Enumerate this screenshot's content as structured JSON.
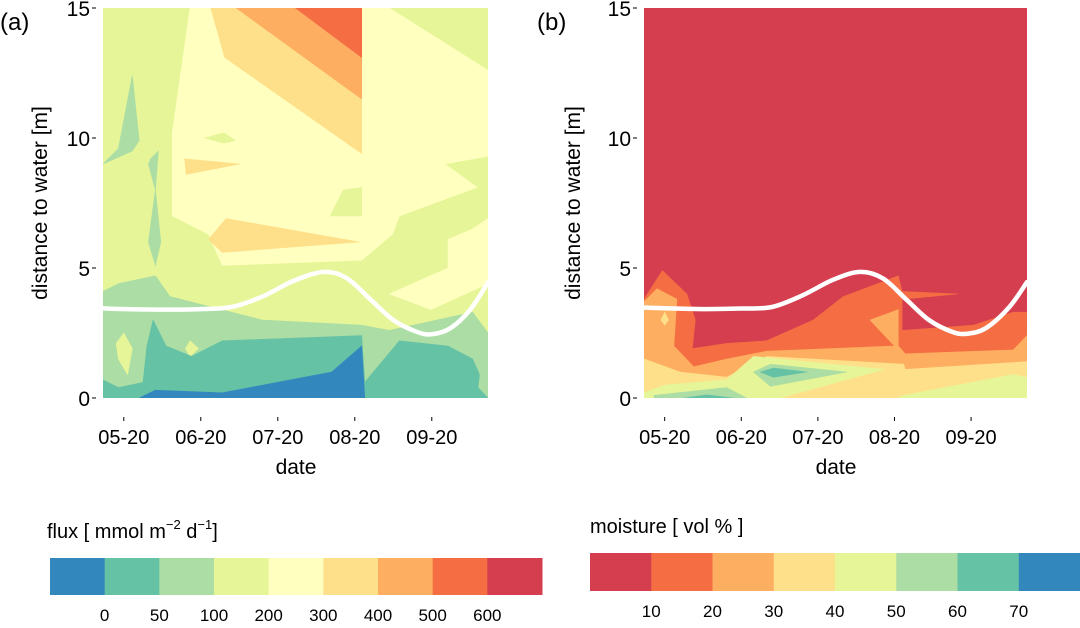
{
  "chart_data": [
    {
      "type": "heatmap",
      "subtype": "filled-contour",
      "panel_label": "(a)",
      "xlabel": "date",
      "ylabel": "distance to water [m]",
      "x_units": "months since 05-20",
      "xlim": [
        -0.27,
        4.73
      ],
      "ylim": [
        0,
        15
      ],
      "xticks": [
        0,
        1,
        2,
        3,
        4
      ],
      "xtick_labels": [
        "05-20",
        "06-20",
        "07-20",
        "08-20",
        "09-20"
      ],
      "yticks": [
        0,
        5,
        10,
        15
      ],
      "ytick_labels": [
        "0",
        "5",
        "10",
        "15"
      ],
      "legend": {
        "title_parts": [
          "flux [ mmol m",
          "−2",
          " d",
          "−1",
          "]"
        ],
        "colors": [
          "#3288bd",
          "#66c2a5",
          "#abdda4",
          "#e6f598",
          "#ffffbf",
          "#fee08b",
          "#fdae61",
          "#f46d43",
          "#d53e4f"
        ],
        "labels": [
          "0",
          "50",
          "100",
          "200",
          "300",
          "400",
          "500",
          "600"
        ]
      },
      "regions": [
        {
          "level": "100-200",
          "color": "#e6f598",
          "points": [
            [
              -0.27,
              0
            ],
            [
              4.73,
              0
            ],
            [
              4.73,
              15
            ],
            [
              -0.27,
              15
            ]
          ]
        },
        {
          "level": "200-300",
          "color": "#ffffbf",
          "points": [
            [
              0.86,
              15
            ],
            [
              3.45,
              15
            ],
            [
              4.73,
              12.6
            ],
            [
              4.73,
              9.3
            ],
            [
              4.17,
              9.0
            ],
            [
              4.59,
              8.1
            ],
            [
              3.58,
              7.0
            ],
            [
              3.49,
              6.3
            ],
            [
              3.13,
              5.4
            ],
            [
              3.09,
              5.3
            ],
            [
              1.28,
              5.1
            ],
            [
              1.1,
              6.3
            ],
            [
              0.63,
              7.0
            ],
            [
              0.63,
              10.2
            ]
          ]
        },
        {
          "level": "200-300",
          "color": "#ffffbf",
          "points": [
            [
              3.45,
              4.0
            ],
            [
              3.99,
              3.4
            ],
            [
              4.73,
              4.4
            ],
            [
              4.73,
              6.9
            ],
            [
              4.53,
              6.5
            ],
            [
              4.21,
              6.1
            ],
            [
              4.21,
              5.0
            ]
          ]
        },
        {
          "level": "100-200",
          "color": "#e6f598",
          "points": [
            [
              1.05,
              10.0
            ],
            [
              1.3,
              10.2
            ],
            [
              1.45,
              9.9
            ],
            [
              1.3,
              9.8
            ]
          ]
        },
        {
          "level": "100-200",
          "color": "#e6f598",
          "points": [
            [
              2.68,
              7.0
            ],
            [
              3.09,
              7.0
            ],
            [
              3.09,
              8.1
            ],
            [
              2.85,
              8.0
            ]
          ]
        },
        {
          "level": "300-400",
          "color": "#fee08b",
          "points": [
            [
              1.13,
              15
            ],
            [
              3.09,
              15
            ],
            [
              3.09,
              9.4
            ],
            [
              1.31,
              13.1
            ]
          ]
        },
        {
          "level": "300-400",
          "color": "#fee08b",
          "points": [
            [
              1.1,
              6.1
            ],
            [
              1.33,
              6.9
            ],
            [
              3.06,
              6.0
            ],
            [
              1.28,
              5.6
            ]
          ]
        },
        {
          "level": "300-400",
          "color": "#fee08b",
          "points": [
            [
              0.79,
              9.2
            ],
            [
              0.81,
              8.6
            ],
            [
              1.51,
              9.0
            ]
          ]
        },
        {
          "level": "400-500",
          "color": "#fdae61",
          "points": [
            [
              1.46,
              15
            ],
            [
              3.09,
              15
            ],
            [
              3.09,
              11.5
            ]
          ]
        },
        {
          "level": "500-600",
          "color": "#f46d43",
          "points": [
            [
              2.23,
              15
            ],
            [
              3.09,
              15
            ],
            [
              3.09,
              13.1
            ]
          ]
        },
        {
          "level": "50-100",
          "color": "#abdda4",
          "points": [
            [
              -0.27,
              0
            ],
            [
              4.73,
              0
            ],
            [
              4.73,
              2.5
            ],
            [
              4.53,
              3.3
            ],
            [
              3.45,
              2.6
            ],
            [
              3.09,
              2.8
            ],
            [
              1.8,
              3.0
            ],
            [
              0.6,
              3.9
            ],
            [
              0.41,
              4.7
            ],
            [
              -0.07,
              4.4
            ],
            [
              -0.27,
              4.1
            ]
          ]
        },
        {
          "level": "50-100",
          "color": "#abdda4",
          "points": [
            [
              -0.27,
              9.0
            ],
            [
              -0.07,
              9.6
            ],
            [
              0.11,
              12.4
            ],
            [
              0.2,
              9.9
            ],
            [
              0.11,
              9.5
            ]
          ]
        },
        {
          "level": "50-100",
          "color": "#abdda4",
          "points": [
            [
              0.35,
              9.2
            ],
            [
              0.45,
              9.5
            ],
            [
              0.41,
              8.0
            ],
            [
              0.32,
              6.0
            ],
            [
              0.41,
              5.1
            ],
            [
              0.48,
              6.0
            ],
            [
              0.41,
              8.0
            ],
            [
              0.32,
              9.0
            ]
          ]
        },
        {
          "level": "100-200",
          "color": "#e6f598",
          "points": [
            [
              0.0,
              2.5
            ],
            [
              0.11,
              1.9
            ],
            [
              0.05,
              0.9
            ],
            [
              -0.07,
              1.5
            ],
            [
              -0.1,
              2.1
            ]
          ]
        },
        {
          "level": "100-200",
          "color": "#e6f598",
          "points": [
            [
              0.8,
              1.9
            ],
            [
              0.86,
              2.2
            ],
            [
              0.97,
              1.9
            ],
            [
              0.86,
              1.6
            ]
          ]
        },
        {
          "level": "0-50",
          "color": "#66c2a5",
          "points": [
            [
              -0.27,
              0
            ],
            [
              4.73,
              0
            ],
            [
              4.6,
              0.4
            ],
            [
              4.62,
              0.9
            ],
            [
              4.53,
              1.5
            ],
            [
              4.21,
              2.0
            ],
            [
              3.58,
              2.2
            ],
            [
              3.13,
              0.6
            ],
            [
              3.09,
              2.4
            ],
            [
              1.28,
              2.2
            ],
            [
              0.88,
              1.6
            ],
            [
              0.55,
              2.0
            ],
            [
              0.38,
              3.0
            ],
            [
              0.3,
              2.0
            ],
            [
              0.25,
              0.6
            ],
            [
              -0.07,
              0.4
            ],
            [
              -0.27,
              0.7
            ]
          ]
        },
        {
          "level": "<0",
          "color": "#3288bd",
          "points": [
            [
              0.2,
              0
            ],
            [
              0.41,
              0.3
            ],
            [
              1.28,
              0.2
            ],
            [
              2.7,
              1.0
            ],
            [
              3.09,
              2.0
            ],
            [
              3.13,
              0
            ]
          ]
        }
      ],
      "water_line": [
        [
          -0.27,
          3.45
        ],
        [
          0,
          3.42
        ],
        [
          0.5,
          3.4
        ],
        [
          1,
          3.42
        ],
        [
          1.4,
          3.5
        ],
        [
          1.8,
          3.9
        ],
        [
          2.2,
          4.5
        ],
        [
          2.6,
          4.85
        ],
        [
          2.9,
          4.6
        ],
        [
          3.2,
          3.8
        ],
        [
          3.5,
          3.0
        ],
        [
          3.8,
          2.55
        ],
        [
          4.0,
          2.45
        ],
        [
          4.25,
          2.7
        ],
        [
          4.5,
          3.4
        ],
        [
          4.73,
          4.45
        ]
      ]
    },
    {
      "type": "heatmap",
      "subtype": "filled-contour",
      "panel_label": "(b)",
      "xlabel": "date",
      "ylabel": "distance to water [m]",
      "x_units": "months since 05-20",
      "xlim": [
        -0.27,
        4.73
      ],
      "ylim": [
        0,
        15
      ],
      "xticks": [
        0,
        1,
        2,
        3,
        4
      ],
      "xtick_labels": [
        "05-20",
        "06-20",
        "07-20",
        "08-20",
        "09-20"
      ],
      "yticks": [
        0,
        5,
        10,
        15
      ],
      "ytick_labels": [
        "0",
        "5",
        "10",
        "15"
      ],
      "legend": {
        "title": "moisture [ vol % ]",
        "colors": [
          "#d53e4f",
          "#f46d43",
          "#fdae61",
          "#fee08b",
          "#e6f598",
          "#abdda4",
          "#66c2a5",
          "#3288bd"
        ],
        "labels": [
          "10",
          "20",
          "30",
          "40",
          "50",
          "60",
          "70"
        ]
      },
      "regions": [
        {
          "level": "<10",
          "color": "#d53e4f",
          "points": [
            [
              -0.27,
              0
            ],
            [
              4.73,
              0
            ],
            [
              4.73,
              15
            ],
            [
              -0.27,
              15
            ]
          ]
        },
        {
          "level": "10-20",
          "color": "#f46d43",
          "points": [
            [
              -0.27,
              0
            ],
            [
              4.73,
              0
            ],
            [
              4.73,
              3.3
            ],
            [
              4.55,
              3.3
            ],
            [
              4.03,
              2.8
            ],
            [
              3.1,
              2.6
            ],
            [
              3.1,
              3.8
            ],
            [
              3.83,
              4.0
            ],
            [
              3.1,
              4.1
            ],
            [
              3.05,
              4.7
            ],
            [
              2.33,
              3.9
            ],
            [
              1.94,
              3.0
            ],
            [
              1.33,
              2.2
            ],
            [
              0.81,
              2.1
            ],
            [
              0.36,
              1.9
            ],
            [
              0.4,
              3.0
            ],
            [
              0.29,
              4.0
            ],
            [
              -0.03,
              4.9
            ],
            [
              -0.27,
              3.8
            ]
          ]
        },
        {
          "level": "20-30",
          "color": "#fdae61",
          "points": [
            [
              -0.27,
              0
            ],
            [
              4.73,
              0
            ],
            [
              4.73,
              2.4
            ],
            [
              4.55,
              1.85
            ],
            [
              3.14,
              1.7
            ],
            [
              3.05,
              2.0
            ],
            [
              3.05,
              3.4
            ],
            [
              2.68,
              3.0
            ],
            [
              3.0,
              2.0
            ],
            [
              1.33,
              1.8
            ],
            [
              0.81,
              1.5
            ],
            [
              0.38,
              1.2
            ],
            [
              0.12,
              2.0
            ],
            [
              0.16,
              3.8
            ],
            [
              -0.1,
              4.2
            ],
            [
              -0.27,
              3.7
            ]
          ]
        },
        {
          "level": "30-40",
          "color": "#fee08b",
          "points": [
            [
              -0.27,
              0
            ],
            [
              4.73,
              0
            ],
            [
              4.73,
              1.4
            ],
            [
              3.14,
              1.1
            ],
            [
              3.12,
              1.3
            ],
            [
              1.33,
              1.6
            ],
            [
              0.81,
              0.8
            ],
            [
              0.2,
              1.0
            ],
            [
              -0.27,
              1.5
            ]
          ]
        },
        {
          "level": "30-40",
          "color": "#fee08b",
          "points": [
            [
              -0.05,
              3.0
            ],
            [
              0.0,
              3.3
            ],
            [
              0.05,
              3.0
            ],
            [
              0.0,
              2.8
            ]
          ]
        },
        {
          "level": "40-50",
          "color": "#e6f598",
          "points": [
            [
              -0.27,
              0
            ],
            [
              1.5,
              0
            ],
            [
              2.86,
              1.1
            ],
            [
              1.16,
              1.6
            ],
            [
              0.81,
              0.7
            ],
            [
              0,
              0.5
            ],
            [
              -0.27,
              0.2
            ]
          ]
        },
        {
          "level": "40-50",
          "color": "#e6f598",
          "points": [
            [
              3.05,
              0
            ],
            [
              4.73,
              0
            ],
            [
              4.73,
              0.8
            ],
            [
              4.55,
              0.9
            ],
            [
              3.12,
              0.1
            ]
          ]
        },
        {
          "level": "50-60",
          "color": "#abdda4",
          "points": [
            [
              -0.14,
              0
            ],
            [
              1.07,
              0
            ],
            [
              0.81,
              0.4
            ],
            [
              -0.14,
              0.1
            ]
          ]
        },
        {
          "level": "50-60",
          "color": "#abdda4",
          "points": [
            [
              1.16,
              1.0
            ],
            [
              1.38,
              1.3
            ],
            [
              2.38,
              1.0
            ],
            [
              1.38,
              0.45
            ]
          ]
        },
        {
          "level": "60-70",
          "color": "#66c2a5",
          "points": [
            [
              0.25,
              0
            ],
            [
              0.9,
              0
            ],
            [
              0.55,
              0.12
            ]
          ]
        },
        {
          "level": "60-70",
          "color": "#66c2a5",
          "points": [
            [
              1.25,
              1.0
            ],
            [
              1.42,
              1.15
            ],
            [
              1.86,
              1.0
            ],
            [
              1.42,
              0.8
            ]
          ]
        }
      ],
      "water_line": [
        [
          -0.27,
          3.48
        ],
        [
          0,
          3.45
        ],
        [
          0.5,
          3.42
        ],
        [
          1,
          3.44
        ],
        [
          1.4,
          3.5
        ],
        [
          1.8,
          3.95
        ],
        [
          2.2,
          4.55
        ],
        [
          2.55,
          4.85
        ],
        [
          2.85,
          4.6
        ],
        [
          3.15,
          3.8
        ],
        [
          3.45,
          3.0
        ],
        [
          3.75,
          2.55
        ],
        [
          3.95,
          2.47
        ],
        [
          4.2,
          2.7
        ],
        [
          4.5,
          3.5
        ],
        [
          4.73,
          4.46
        ]
      ]
    }
  ]
}
